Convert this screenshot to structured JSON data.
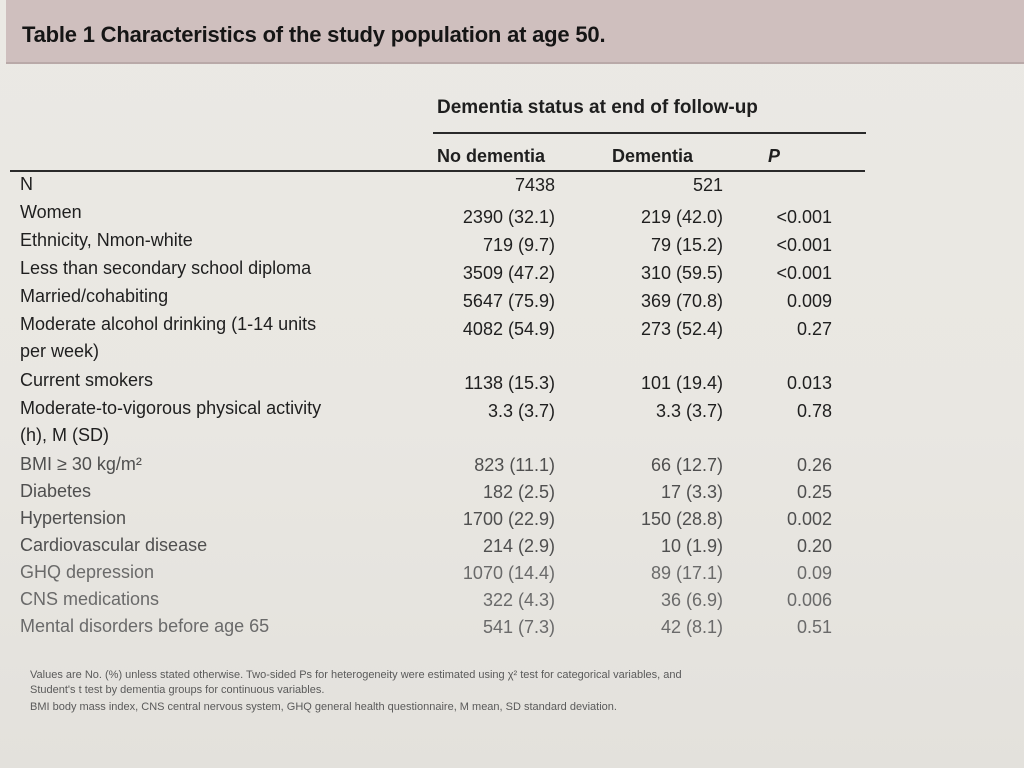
{
  "table": {
    "title": "Table 1 Characteristics of the study population at age 50.",
    "group_header": "Dementia status at end of follow-up",
    "columns": [
      "No dementia",
      "Dementia",
      "P"
    ],
    "rows": [
      {
        "label": "N",
        "label2": "",
        "no_dementia": "7438",
        "dementia": "521",
        "p": ""
      },
      {
        "label": "Women",
        "label2": "",
        "no_dementia": "2390 (32.1)",
        "dementia": "219 (42.0)",
        "p": "<0.001"
      },
      {
        "label": "Ethnicity, Nmon-white",
        "label2": "",
        "no_dementia": "719 (9.7)",
        "dementia": "79 (15.2)",
        "p": "<0.001"
      },
      {
        "label": "Less than secondary school diploma",
        "label2": "",
        "no_dementia": "3509 (47.2)",
        "dementia": "310 (59.5)",
        "p": "<0.001"
      },
      {
        "label": "Married/cohabiting",
        "label2": "",
        "no_dementia": "5647 (75.9)",
        "dementia": "369 (70.8)",
        "p": "0.009"
      },
      {
        "label": "Moderate alcohol drinking (1-14 units",
        "label2": "per week)",
        "no_dementia": "4082 (54.9)",
        "dementia": "273 (52.4)",
        "p": "0.27"
      },
      {
        "label": "Current smokers",
        "label2": "",
        "no_dementia": "1138 (15.3)",
        "dementia": "101 (19.4)",
        "p": "0.013"
      },
      {
        "label": "Moderate-to-vigorous physical activity",
        "label2": "(h), M (SD)",
        "no_dementia": "3.3 (3.7)",
        "dementia": "3.3 (3.7)",
        "p": "0.78"
      },
      {
        "label": "BMI ≥ 30 kg/m²",
        "label2": "",
        "no_dementia": "823 (11.1)",
        "dementia": "66 (12.7)",
        "p": "0.26"
      },
      {
        "label": "Diabetes",
        "label2": "",
        "no_dementia": "182 (2.5)",
        "dementia": "17 (3.3)",
        "p": "0.25"
      },
      {
        "label": "Hypertension",
        "label2": "",
        "no_dementia": "1700 (22.9)",
        "dementia": "150 (28.8)",
        "p": "0.002"
      },
      {
        "label": "Cardiovascular disease",
        "label2": "",
        "no_dementia": "214 (2.9)",
        "dementia": "10 (1.9)",
        "p": "0.20"
      },
      {
        "label": "GHQ depression",
        "label2": "",
        "no_dementia": "1070 (14.4)",
        "dementia": "89 (17.1)",
        "p": "0.09"
      },
      {
        "label": "CNS medications",
        "label2": "",
        "no_dementia": "322 (4.3)",
        "dementia": "36 (6.9)",
        "p": "0.006"
      },
      {
        "label": "Mental disorders before age 65",
        "label2": "",
        "no_dementia": "541 (7.3)",
        "dementia": "42 (8.1)",
        "p": "0.51"
      }
    ],
    "footnotes": [
      "Values are No. (%) unless stated otherwise. Two-sided Ps for heterogeneity were estimated using χ² test for categorical variables, and",
      "Student's t test by dementia groups for continuous variables.",
      "BMI body mass index, CNS central nervous system, GHQ general health questionnaire, M mean, SD standard deviation."
    ]
  }
}
